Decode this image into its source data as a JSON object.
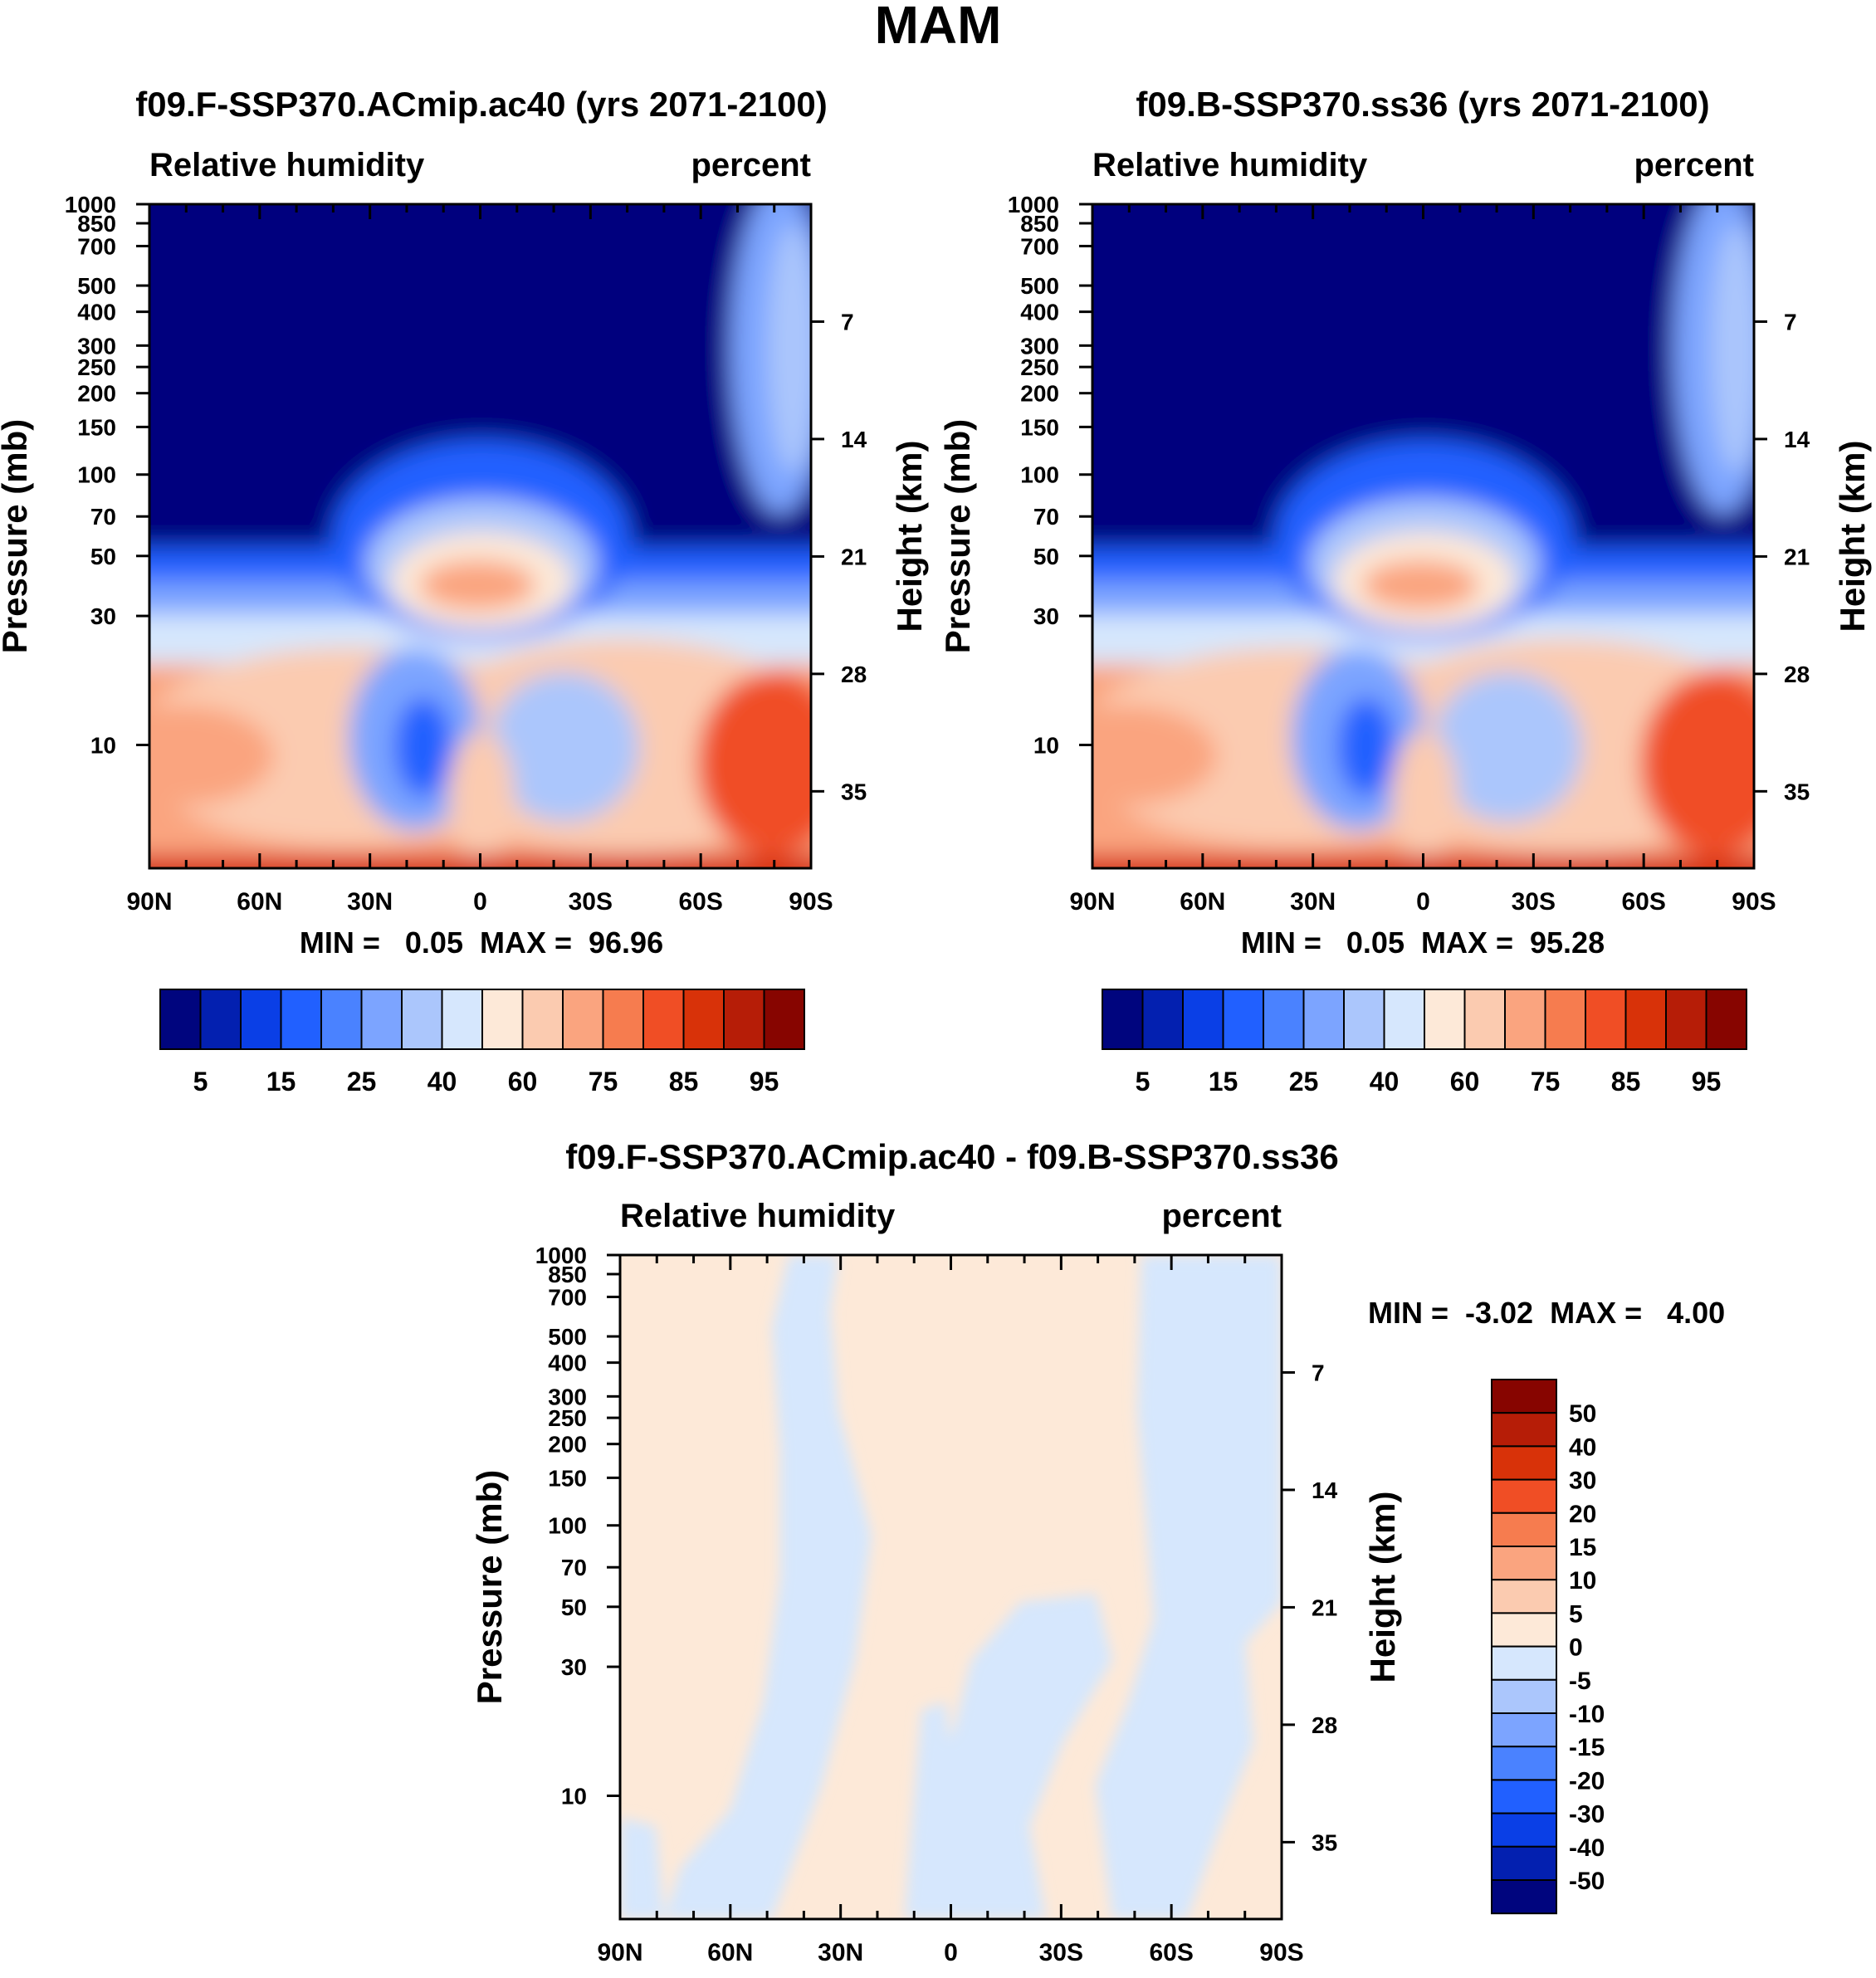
{
  "figure_title": "MAM",
  "chart_data": [
    {
      "type": "contour",
      "title": "f09.F-SSP370.ACmip.ac40 (yrs 2071-2100)",
      "left_string": "Relative humidity",
      "right_string": "percent",
      "xlabel": "",
      "ylabel": "Pressure (mb)",
      "y2label": "Height (km)",
      "x_ticks": [
        "90N",
        "60N",
        "30N",
        "0",
        "30S",
        "60S",
        "90S"
      ],
      "y_ticks": [
        10,
        30,
        50,
        70,
        100,
        150,
        200,
        250,
        300,
        400,
        500,
        700,
        850,
        1000
      ],
      "y2_ticks": [
        35,
        28,
        21,
        14,
        7
      ],
      "ylim": [
        1000,
        3.5
      ],
      "min_max": "MIN =   0.05  MAX =  96.96",
      "min": 0.05,
      "max": 96.96,
      "colorbar_labels": [
        "5",
        "15",
        "25",
        "40",
        "60",
        "75",
        "85",
        "95"
      ],
      "levels": [
        5,
        10,
        15,
        20,
        25,
        30,
        40,
        50,
        60,
        70,
        75,
        80,
        85,
        90,
        95
      ]
    },
    {
      "type": "contour",
      "title": "f09.B-SSP370.ss36 (yrs 2071-2100)",
      "left_string": "Relative humidity",
      "right_string": "percent",
      "xlabel": "",
      "ylabel": "Pressure (mb)",
      "y2label": "Height (km)",
      "x_ticks": [
        "90N",
        "60N",
        "30N",
        "0",
        "30S",
        "60S",
        "90S"
      ],
      "y_ticks": [
        10,
        30,
        50,
        70,
        100,
        150,
        200,
        250,
        300,
        400,
        500,
        700,
        850,
        1000
      ],
      "y2_ticks": [
        35,
        28,
        21,
        14,
        7
      ],
      "ylim": [
        1000,
        3.5
      ],
      "min_max": "MIN =   0.05  MAX =  95.28",
      "min": 0.05,
      "max": 95.28,
      "colorbar_labels": [
        "5",
        "15",
        "25",
        "40",
        "60",
        "75",
        "85",
        "95"
      ],
      "levels": [
        5,
        10,
        15,
        20,
        25,
        30,
        40,
        50,
        60,
        70,
        75,
        80,
        85,
        90,
        95
      ]
    },
    {
      "type": "contour",
      "title": "f09.F-SSP370.ACmip.ac40 - f09.B-SSP370.ss36",
      "left_string": "Relative humidity",
      "right_string": "percent",
      "xlabel": "",
      "ylabel": "Pressure (mb)",
      "y2label": "Height (km)",
      "x_ticks": [
        "90N",
        "60N",
        "30N",
        "0",
        "30S",
        "60S",
        "90S"
      ],
      "y_ticks": [
        10,
        30,
        50,
        70,
        100,
        150,
        200,
        250,
        300,
        400,
        500,
        700,
        850,
        1000
      ],
      "y2_ticks": [
        35,
        28,
        21,
        14,
        7
      ],
      "ylim": [
        1000,
        3.5
      ],
      "min_max": "MIN =  -3.02  MAX =   4.00",
      "min": -3.02,
      "max": 4.0,
      "colorbar_labels": [
        "50",
        "40",
        "30",
        "20",
        "15",
        "10",
        "5",
        "0",
        "-5",
        "-10",
        "-15",
        "-20",
        "-30",
        "-40",
        "-50"
      ],
      "levels": [
        -50,
        -40,
        -30,
        -20,
        -15,
        -10,
        -5,
        0,
        5,
        10,
        15,
        20,
        30,
        40,
        50
      ]
    }
  ],
  "palette": [
    "#00057e",
    "#0320b0",
    "#0a3fe6",
    "#2160ff",
    "#4a82ff",
    "#7ca4ff",
    "#abc6fc",
    "#d6e7fd",
    "#fde9d8",
    "#fbcbb0",
    "#faa47f",
    "#f67c4f",
    "#f04e25",
    "#d83209",
    "#b61d07",
    "#870500"
  ]
}
